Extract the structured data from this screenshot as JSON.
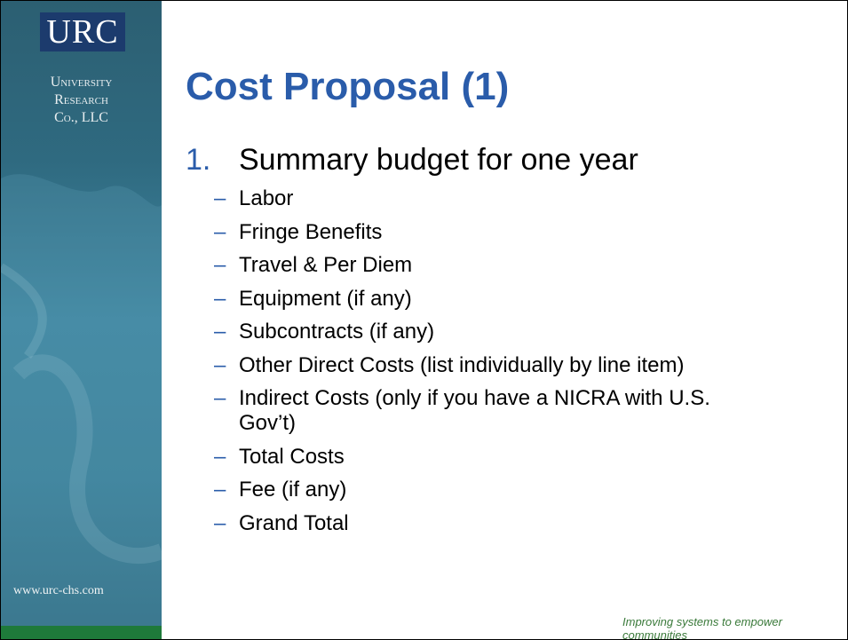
{
  "sidebar": {
    "logo": "URC",
    "org_lines": [
      "University",
      "Research",
      "Co., LLC"
    ],
    "url": "www.urc-chs.com"
  },
  "title": "Cost Proposal (1)",
  "list": {
    "number": "1.",
    "text": "Summary budget for one year",
    "items": [
      "Labor",
      "Fringe Benefits",
      "Travel & Per Diem",
      "Equipment (if any)",
      "Subcontracts (if any)",
      "Other Direct Costs (list individually by line item)",
      "Indirect Costs (only if you have a NICRA with U.S. Gov’t)",
      "Total Costs",
      "Fee (if any)",
      "Grand Total"
    ]
  },
  "footer": "Improving systems to empower communities"
}
